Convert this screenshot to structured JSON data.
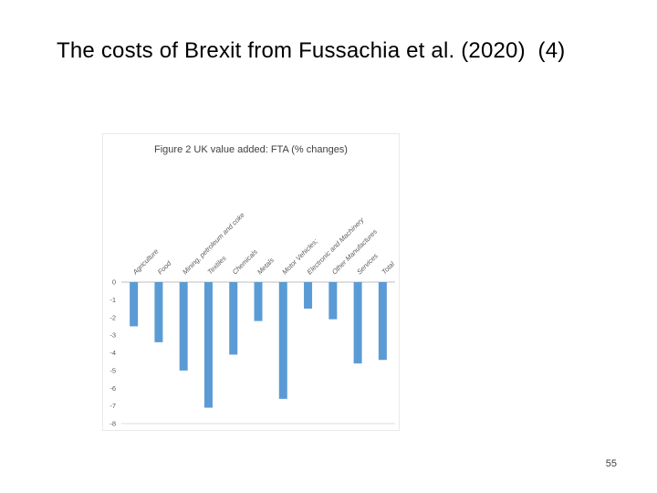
{
  "slide": {
    "title": "The costs of Brexit from Fussachia et al. (2020)  (4)",
    "page_number": "55"
  },
  "chart_data": {
    "type": "bar",
    "title": "Figure 2 UK value added: FTA (% changes)",
    "categories": [
      "Agriculture",
      "Food",
      "Mining, petroleum and coke",
      "Textiles",
      "Chemicals",
      "Metals",
      "Motor Vehicles;",
      "Electronic and Machinery",
      "Other Manufactures",
      "Services",
      "Total"
    ],
    "values": [
      -2.5,
      -3.4,
      -5.0,
      -7.1,
      -4.1,
      -2.2,
      -6.6,
      -1.5,
      -2.1,
      -4.6,
      -4.4
    ],
    "xlabel": "",
    "ylabel": "",
    "ylim": [
      -8,
      0
    ],
    "yticks": [
      0,
      -1,
      -2,
      -3,
      -4,
      -5,
      -6,
      -7,
      -8
    ],
    "bar_color": "#5b9bd5",
    "axis_line_color": "#bfbfbf",
    "grid": false,
    "legend": "none"
  }
}
